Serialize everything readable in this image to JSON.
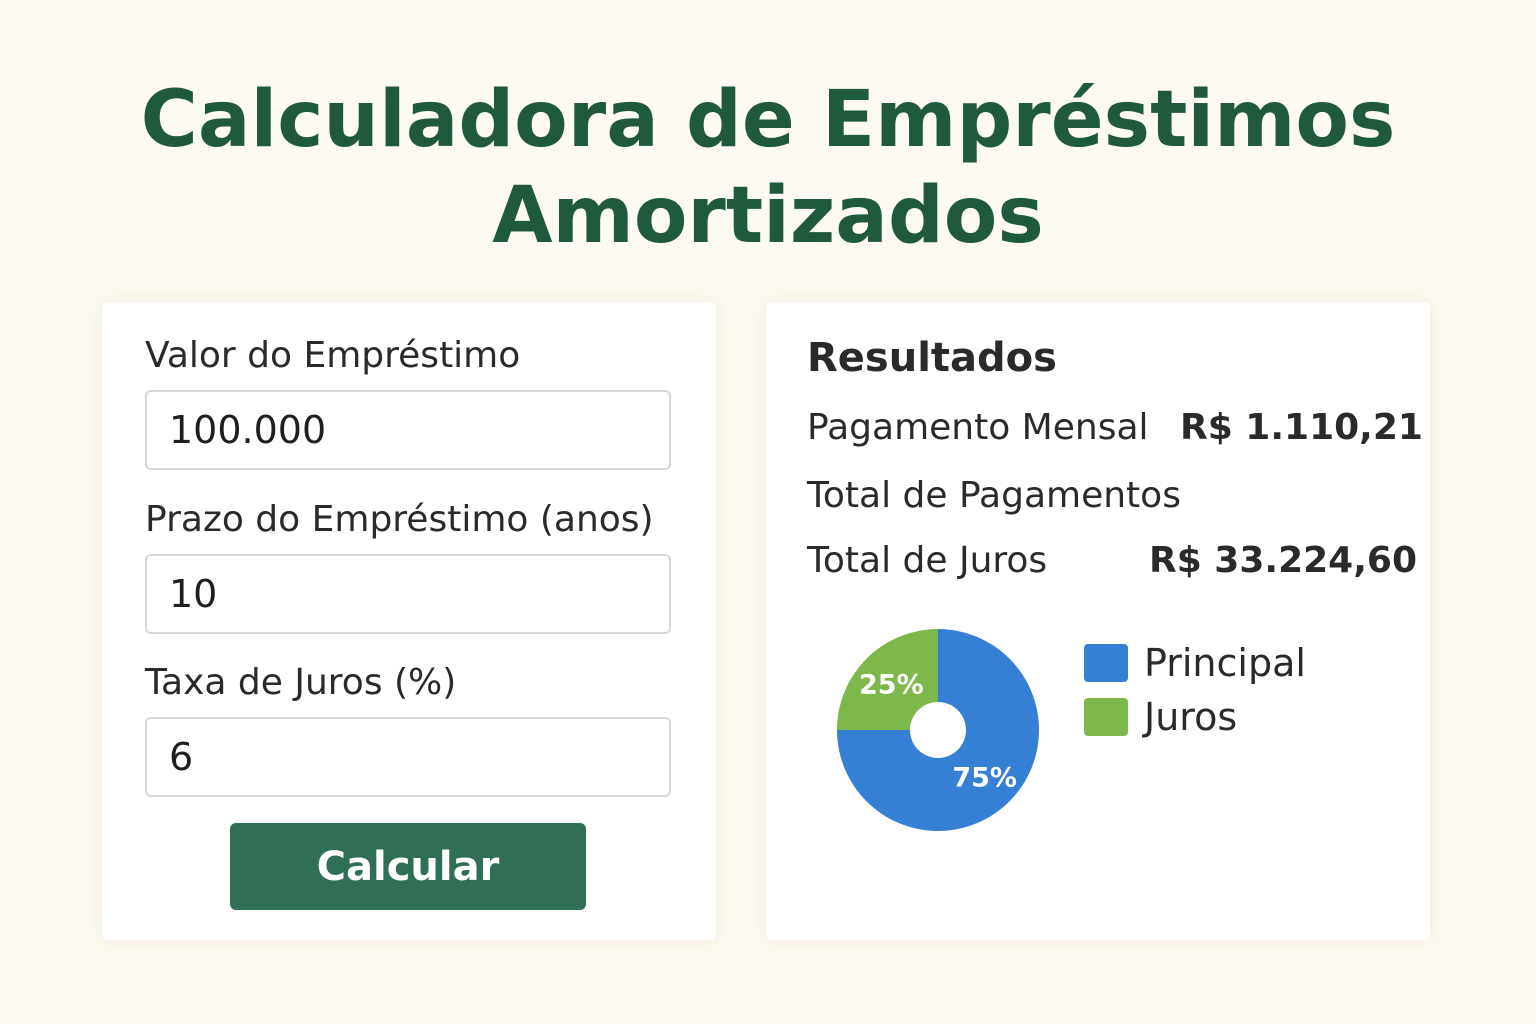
{
  "page": {
    "title_line1": "Calculadora de Empréstimos",
    "title_line2": "Amortizados"
  },
  "form": {
    "loan_amount": {
      "label": "Valor do Empréstimo",
      "value": "100.000"
    },
    "loan_term": {
      "label": "Prazo do Empréstimo (anos)",
      "value": "10"
    },
    "interest_rate": {
      "label": "Taxa de Juros (%)",
      "value": "6"
    },
    "calculate_label": "Calcular"
  },
  "results": {
    "title": "Resultados",
    "monthly_payment": {
      "label": "Pagamento Mensal",
      "value": "R$ 1.110,21"
    },
    "total_payments": {
      "label": "Total de Pagamentos",
      "value": ""
    },
    "total_interest": {
      "label": "Total de Juros",
      "value": "R$ 33.224,60"
    }
  },
  "colors": {
    "accent": "#1f5a3c",
    "button": "#2e6f55",
    "principal": "#3580d4",
    "interest": "#7db84a"
  },
  "chart_data": {
    "type": "pie",
    "donut": true,
    "categories": [
      "Principal",
      "Juros"
    ],
    "values": [
      75,
      25
    ],
    "data_labels": [
      "75%",
      "25%"
    ],
    "colors": [
      "#3580d4",
      "#7db84a"
    ],
    "legend": "right"
  }
}
